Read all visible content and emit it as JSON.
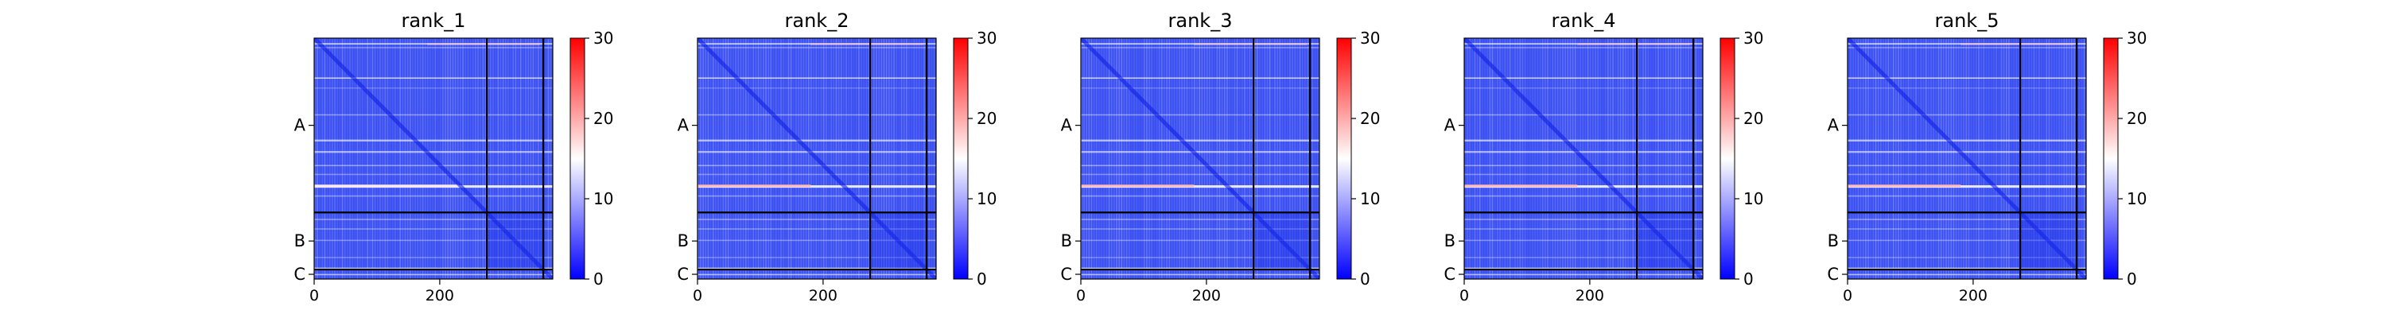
{
  "chart_data": {
    "type": "heatmap",
    "colormap": "bwr",
    "colors": {
      "low": "#0000ff",
      "mid": "#ffffff",
      "high": "#ff0000"
    },
    "x_range": [
      0,
      380
    ],
    "x_ticks": [
      0,
      200
    ],
    "y_ticks": [
      "A",
      "B",
      "C"
    ],
    "chain_boundaries": [
      275,
      365
    ],
    "colorbar": {
      "range": [
        0,
        30
      ],
      "ticks": [
        0,
        10,
        20,
        30
      ]
    },
    "panels": [
      {
        "title": "rank_1"
      },
      {
        "title": "rank_2"
      },
      {
        "title": "rank_3"
      },
      {
        "title": "rank_4"
      },
      {
        "title": "rank_5"
      }
    ]
  }
}
